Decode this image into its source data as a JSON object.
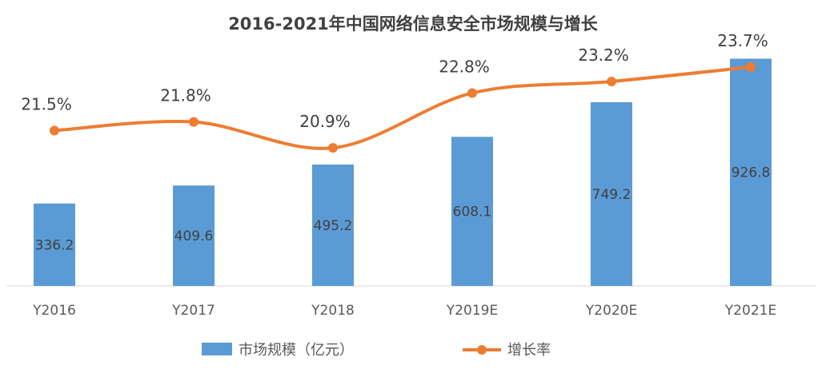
{
  "chart_data": {
    "type": "bar",
    "title": "2016-2021年中国网络信息安全市场规模与增长",
    "categories": [
      "Y2016",
      "Y2017",
      "Y2018",
      "Y2019E",
      "Y2020E",
      "Y2021E"
    ],
    "series": [
      {
        "name": "市场规模（亿元）",
        "type": "bar",
        "color": "#5B9BD5",
        "values": [
          336.2,
          409.6,
          495.2,
          608.1,
          749.2,
          926.8
        ],
        "labels": [
          "336.2",
          "409.6",
          "495.2",
          "608.1",
          "749.2",
          "926.8"
        ]
      },
      {
        "name": "增长率",
        "type": "line",
        "color": "#ED7D31",
        "values": [
          21.5,
          21.8,
          20.9,
          22.8,
          23.2,
          23.7
        ],
        "labels": [
          "21.5%",
          "21.8%",
          "20.9%",
          "22.8%",
          "23.2%",
          "23.7%"
        ]
      }
    ],
    "ylim": [
      0,
      1000
    ],
    "y2lim": [
      18,
      24.5
    ],
    "grid": false,
    "legend_position": "bottom"
  }
}
